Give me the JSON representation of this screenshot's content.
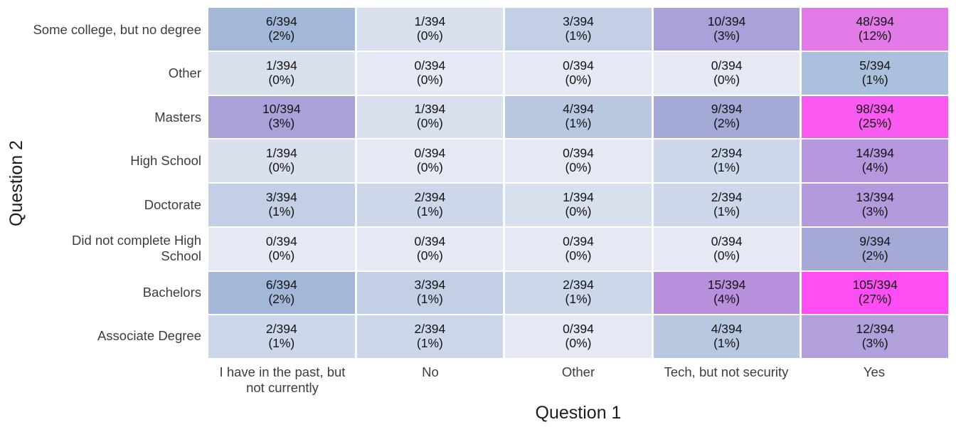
{
  "chart_data": {
    "type": "heatmap",
    "title": "",
    "xlabel": "Question 1",
    "ylabel": "Question 2",
    "total": 394,
    "x_categories": [
      "I have in the past, but not currently",
      "No",
      "Other",
      "Tech, but not security",
      "Yes"
    ],
    "y_categories": [
      "Some college, but no degree",
      "Other",
      "Masters",
      "High School",
      "Doctorate",
      "Did not complete High School",
      "Bachelors",
      "Associate Degree"
    ],
    "counts": [
      [
        6,
        1,
        3,
        10,
        48
      ],
      [
        1,
        0,
        0,
        0,
        5
      ],
      [
        10,
        1,
        4,
        9,
        98
      ],
      [
        1,
        0,
        0,
        2,
        14
      ],
      [
        3,
        2,
        1,
        2,
        13
      ],
      [
        0,
        0,
        0,
        0,
        9
      ],
      [
        6,
        3,
        2,
        15,
        105
      ],
      [
        2,
        2,
        0,
        4,
        12
      ]
    ],
    "percents": [
      [
        2,
        0,
        1,
        3,
        12
      ],
      [
        0,
        0,
        0,
        0,
        1
      ],
      [
        3,
        0,
        1,
        2,
        25
      ],
      [
        0,
        0,
        0,
        1,
        4
      ],
      [
        1,
        1,
        0,
        1,
        3
      ],
      [
        0,
        0,
        0,
        0,
        2
      ],
      [
        2,
        1,
        1,
        4,
        27
      ],
      [
        1,
        1,
        0,
        1,
        3
      ]
    ],
    "color_by_count": {
      "0": "#e4e9f3",
      "1": "#d8e0ee",
      "2": "#cdd7ea",
      "3": "#c2cfe5",
      "4": "#b9c8e1",
      "5": "#abc0dc",
      "6": "#a3b8d8",
      "9": "#a4a9d6",
      "10": "#a9a1d8",
      "12": "#b2a0da",
      "13": "#b49adc",
      "14": "#b696dd",
      "15": "#b990de",
      "48": "#e27ae8",
      "98": "#fa5af0",
      "105": "#ff4ef4"
    },
    "legend": "none",
    "grid_gaps_color": "#ffffff",
    "cell_text_color": "#141414",
    "tick_label_color": "#3d3d3d",
    "axis_title_color": "#1c1c1c"
  }
}
